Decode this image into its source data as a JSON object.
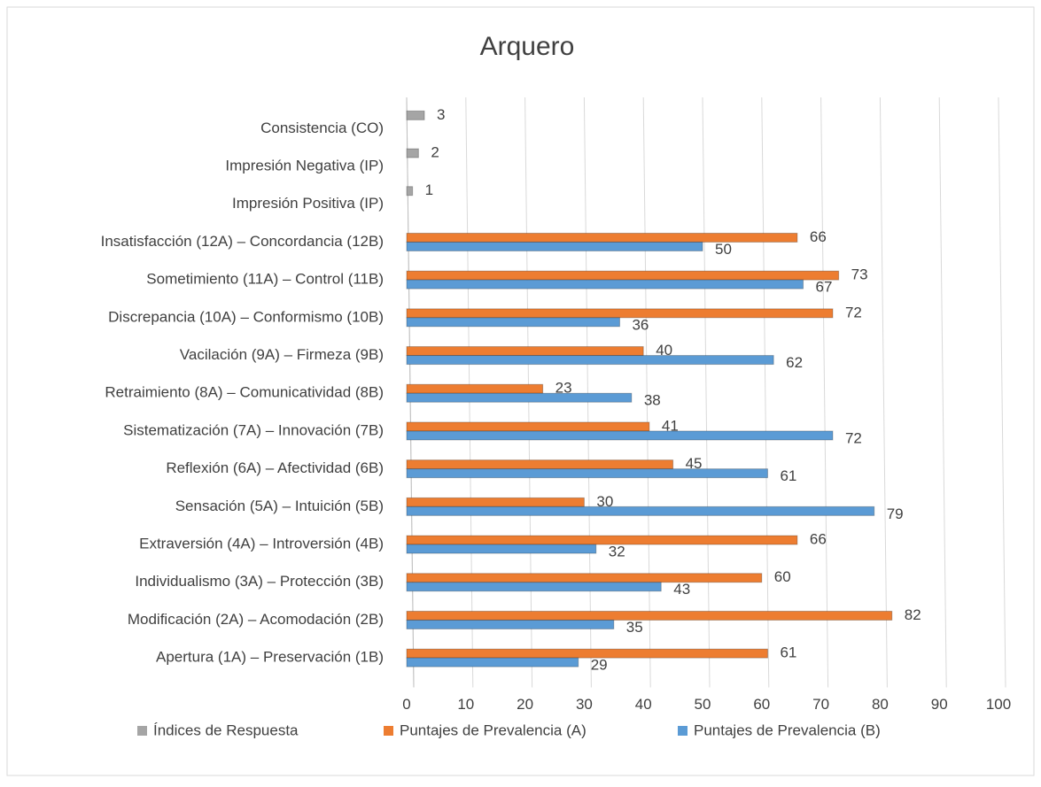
{
  "chart_data": {
    "type": "bar",
    "orientation": "horizontal",
    "title": "Arquero",
    "categories": [
      "Consistencia (CO)",
      "Impresión Negativa (IP)",
      "Impresión Positiva (IP)",
      "Insatisfacción (12A) – Concordancia (12B)",
      "Sometimiento  (11A) – Control (11B)",
      "Discrepancia (10A) – Conformismo (10B)",
      "Vacilación (9A) – Firmeza (9B)",
      "Retraimiento (8A) – Comunicatividad (8B)",
      "Sistematización (7A) – Innovación (7B)",
      "Reflexión (6A) – Afectividad (6B)",
      "Sensación (5A) – Intuición (5B)",
      "Extraversión (4A) – Introversión (4B)",
      "Individualismo (3A) – Protección (3B)",
      "Modificación (2A) – Acomodación (2B)",
      "Apertura (1A) – Preservación (1B)"
    ],
    "series": [
      {
        "name": "Índices de Respuesta",
        "color": "#a5a5a5",
        "values": [
          3,
          2,
          1,
          null,
          null,
          null,
          null,
          null,
          null,
          null,
          null,
          null,
          null,
          null,
          null
        ]
      },
      {
        "name": "Puntajes de Prevalencia (A)",
        "color": "#ed7d31",
        "values": [
          null,
          null,
          null,
          66,
          73,
          72,
          40,
          23,
          41,
          45,
          30,
          66,
          60,
          82,
          61
        ]
      },
      {
        "name": "Puntajes de Prevalencia (B)",
        "color": "#5b9bd5",
        "values": [
          null,
          null,
          null,
          50,
          67,
          36,
          62,
          38,
          72,
          61,
          79,
          32,
          43,
          35,
          29
        ]
      }
    ],
    "xlim": [
      0,
      100
    ],
    "xticks": [
      0,
      10,
      20,
      30,
      40,
      50,
      60,
      70,
      80,
      90,
      100
    ],
    "grid": true,
    "legend": "bottom"
  }
}
